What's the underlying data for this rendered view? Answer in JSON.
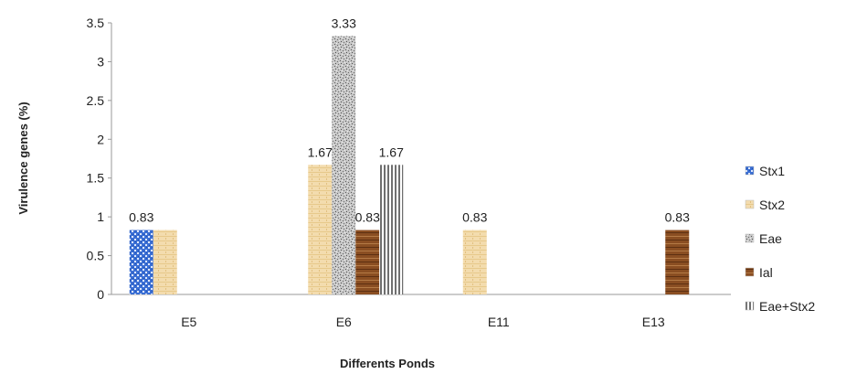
{
  "chart_data": {
    "type": "bar",
    "title": "",
    "xlabel": "Differents Ponds",
    "ylabel": "Virulence genes (%)",
    "ylim": [
      0,
      3.5
    ],
    "yticks": [
      "0",
      "0.5",
      "1",
      "1.5",
      "2",
      "2.5",
      "3",
      "3.5"
    ],
    "grid": false,
    "legend_position": "right",
    "categories": [
      "E5",
      "E6",
      "E11",
      "E13"
    ],
    "series": [
      {
        "name": "Stx1",
        "color": "#3b6fd4",
        "values": [
          0.83,
          null,
          null,
          null
        ]
      },
      {
        "name": "Stx2",
        "color": "#f1d9a6",
        "values": [
          0.83,
          1.67,
          0.83,
          null
        ]
      },
      {
        "name": "Eae",
        "color": "#b3b3b3",
        "values": [
          null,
          3.33,
          null,
          null
        ]
      },
      {
        "name": "Ial",
        "color": "#8a4e22",
        "values": [
          null,
          0.83,
          null,
          0.83
        ]
      },
      {
        "name": "Eae+Stx2",
        "color": "#8c8c8c",
        "values": [
          null,
          1.67,
          null,
          null
        ]
      }
    ],
    "data_labels": [
      {
        "category": "E5",
        "text": "0.83",
        "value": 0.83,
        "series": 0
      },
      {
        "category": "E6",
        "text": "1.67",
        "value": 1.67,
        "series": 1
      },
      {
        "category": "E6",
        "text": "3.33",
        "value": 3.33,
        "series": 2
      },
      {
        "category": "E6",
        "text": "0.83",
        "value": 0.83,
        "series": 3
      },
      {
        "category": "E6",
        "text": "1.67",
        "value": 1.67,
        "series": 4
      },
      {
        "category": "E11",
        "text": "0.83",
        "value": 0.83,
        "series": 1
      },
      {
        "category": "E13",
        "text": "0.83",
        "value": 0.83,
        "series": 3
      }
    ]
  }
}
